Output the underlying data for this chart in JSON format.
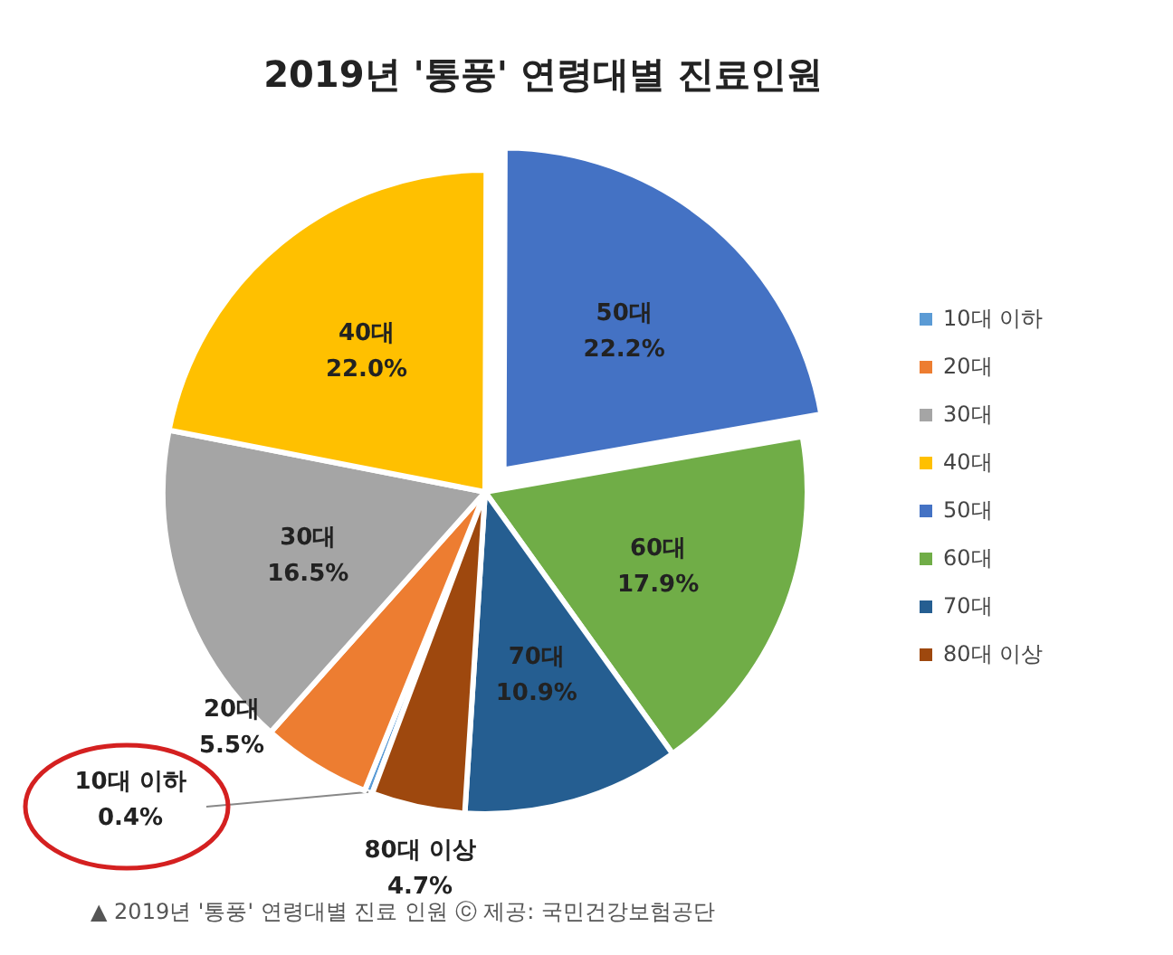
{
  "chart_data": {
    "type": "pie",
    "title": "2019년 '통풍' 연령대별 진료인원",
    "categories": [
      "10대 이하",
      "20대",
      "30대",
      "40대",
      "50대",
      "60대",
      "70대",
      "80대 이상"
    ],
    "values": [
      0.4,
      5.5,
      16.5,
      22.0,
      22.2,
      17.9,
      10.9,
      4.7
    ],
    "value_labels": [
      "0.4%",
      "5.5%",
      "16.5%",
      "22.0%",
      "22.2%",
      "17.9%",
      "10.9%",
      "4.7%"
    ],
    "colors": [
      "#5b9bd5",
      "#ed7d31",
      "#a5a5a5",
      "#ffc000",
      "#4472c4",
      "#70ad47",
      "#255e91",
      "#9e480e"
    ],
    "legend": "right",
    "annotations": [
      "▲ 2019년 '통풍' 연령대별 진료 인원 ⓒ 제공: 국민건강보험공단"
    ]
  }
}
